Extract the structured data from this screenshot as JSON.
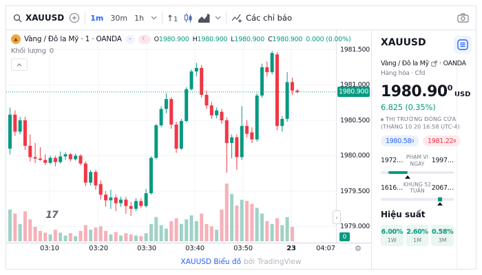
{
  "toolbar": {
    "search_symbol": "XAUUSD",
    "intervals": [
      "1m",
      "30m",
      "1h"
    ],
    "indicators_label": "Các chỉ báo",
    "compare_badge": "1"
  },
  "legend": {
    "title": "Vàng / Đô la Mỹ · 1 · OANDA",
    "pill_minus": "–",
    "pill_moon": "☾",
    "ohlc": [
      {
        "k": "O",
        "v": "1980.900"
      },
      {
        "k": "H",
        "v": "1980.900"
      },
      {
        "k": "L",
        "v": "1980.900"
      },
      {
        "k": "C",
        "v": "1980.900"
      }
    ],
    "change": "0.000 (0.00%)",
    "volume_label": "Khối lượng",
    "volume_value": "0",
    "watermark": "17"
  },
  "chart_data": {
    "type": "candlestick",
    "symbol": "XAUUSD",
    "interval": "1 minute",
    "title": "Vàng / Đô la Mỹ · 1 · OANDA",
    "ylim": [
      1978.8,
      1981.65
    ],
    "grid": true,
    "y_ticks": [
      {
        "t": "1981.500",
        "p": 1981.5
      },
      {
        "t": "1981.000",
        "p": 1981.0
      },
      {
        "t": "1980.500",
        "p": 1980.5
      },
      {
        "t": "1980.000",
        "p": 1980.0
      },
      {
        "t": "1979.500",
        "p": 1979.5
      },
      {
        "t": "1979.000",
        "p": 1979.0
      }
    ],
    "x_labels": [
      {
        "t": "03:10",
        "x": 63,
        "grid": true,
        "bold": false
      },
      {
        "t": "03:20",
        "x": 134,
        "grid": true,
        "bold": false
      },
      {
        "t": "03:30",
        "x": 204,
        "grid": true,
        "bold": false
      },
      {
        "t": "03:40",
        "x": 274,
        "grid": true,
        "bold": false
      },
      {
        "t": "03:50",
        "x": 344,
        "grid": true,
        "bold": false
      },
      {
        "t": "23",
        "x": 414,
        "grid": true,
        "bold": true
      },
      {
        "t": "04:07",
        "x": 464,
        "grid": false,
        "bold": false
      }
    ],
    "current_price": {
      "label": "1980.900",
      "p": 1980.9
    },
    "volume_zero_label": "0",
    "candles_format": [
      "open",
      "high",
      "low",
      "close",
      "volume_rel"
    ],
    "candles": [
      [
        1980.1,
        1980.68,
        1980.02,
        1980.58,
        55
      ],
      [
        1980.58,
        1980.64,
        1980.28,
        1980.34,
        48
      ],
      [
        1980.34,
        1980.55,
        1980.3,
        1980.5,
        30
      ],
      [
        1980.5,
        1980.55,
        1980.08,
        1980.14,
        52
      ],
      [
        1980.14,
        1980.3,
        1979.92,
        1979.98,
        38
      ],
      [
        1979.98,
        1980.18,
        1979.9,
        1979.96,
        25
      ],
      [
        1979.96,
        1980.12,
        1979.93,
        1979.94,
        18
      ],
      [
        1979.94,
        1980.02,
        1979.87,
        1979.9,
        15
      ],
      [
        1979.9,
        1980.0,
        1979.88,
        1979.97,
        12
      ],
      [
        1979.97,
        1980.0,
        1979.85,
        1979.91,
        20
      ],
      [
        1979.91,
        1980.06,
        1979.89,
        1979.99,
        15
      ],
      [
        1979.99,
        1980.05,
        1979.94,
        1980.02,
        10
      ],
      [
        1980.02,
        1980.04,
        1979.92,
        1979.95,
        14
      ],
      [
        1979.95,
        1980.03,
        1979.93,
        1980.0,
        9
      ],
      [
        1980.0,
        1980.02,
        1979.86,
        1979.89,
        18
      ],
      [
        1979.89,
        1979.92,
        1979.57,
        1979.62,
        28
      ],
      [
        1979.62,
        1979.8,
        1979.58,
        1979.77,
        20
      ],
      [
        1979.77,
        1979.8,
        1979.52,
        1979.58,
        24
      ],
      [
        1979.6,
        1979.65,
        1979.38,
        1979.45,
        26
      ],
      [
        1979.45,
        1979.5,
        1979.28,
        1979.37,
        18
      ],
      [
        1979.37,
        1979.52,
        1979.25,
        1979.41,
        12
      ],
      [
        1979.41,
        1979.45,
        1979.22,
        1979.33,
        16
      ],
      [
        1979.33,
        1979.42,
        1979.28,
        1979.38,
        10
      ],
      [
        1979.38,
        1979.42,
        1979.18,
        1979.29,
        14
      ],
      [
        1979.29,
        1979.35,
        1979.15,
        1979.25,
        12
      ],
      [
        1979.25,
        1979.4,
        1979.22,
        1979.36,
        10
      ],
      [
        1979.36,
        1979.4,
        1979.26,
        1979.29,
        9
      ],
      [
        1979.29,
        1979.53,
        1979.27,
        1979.47,
        14
      ],
      [
        1979.47,
        1979.99,
        1979.45,
        1979.97,
        30
      ],
      [
        1979.97,
        1980.45,
        1979.95,
        1980.43,
        42
      ],
      [
        1980.43,
        1980.7,
        1980.4,
        1980.66,
        28
      ],
      [
        1980.66,
        1980.88,
        1980.6,
        1980.8,
        22
      ],
      [
        1980.8,
        1980.83,
        1980.38,
        1980.44,
        35
      ],
      [
        1980.44,
        1980.48,
        1980.04,
        1980.1,
        40
      ],
      [
        1980.1,
        1980.52,
        1980.08,
        1980.49,
        30
      ],
      [
        1980.49,
        1980.97,
        1980.47,
        1980.94,
        38
      ],
      [
        1980.94,
        1981.22,
        1980.92,
        1981.19,
        45
      ],
      [
        1981.19,
        1981.31,
        1981.12,
        1981.24,
        35
      ],
      [
        1981.24,
        1981.28,
        1980.82,
        1980.86,
        48
      ],
      [
        1980.86,
        1980.92,
        1980.66,
        1980.71,
        30
      ],
      [
        1980.71,
        1980.76,
        1980.52,
        1980.57,
        26
      ],
      [
        1980.57,
        1980.68,
        1980.53,
        1980.64,
        20
      ],
      [
        1980.62,
        1980.66,
        1980.45,
        1980.5,
        55
      ],
      [
        1980.5,
        1980.54,
        1979.76,
        1980.18,
        100
      ],
      [
        1980.18,
        1980.3,
        1979.96,
        1980.26,
        82
      ],
      [
        1980.26,
        1980.3,
        1979.8,
        1979.98,
        62
      ],
      [
        1979.98,
        1980.7,
        1979.94,
        1980.42,
        72
      ],
      [
        1980.42,
        1980.5,
        1980.26,
        1980.31,
        70
      ],
      [
        1980.33,
        1980.4,
        1980.18,
        1980.23,
        65
      ],
      [
        1980.23,
        1980.88,
        1980.2,
        1980.85,
        58
      ],
      [
        1980.85,
        1981.3,
        1980.82,
        1981.25,
        48
      ],
      [
        1981.25,
        1981.33,
        1981.12,
        1981.18,
        35
      ],
      [
        1981.18,
        1981.48,
        1981.15,
        1981.45,
        30
      ],
      [
        1981.43,
        1981.46,
        1980.36,
        1980.42,
        40
      ],
      [
        1980.42,
        1980.56,
        1980.34,
        1980.52,
        28
      ],
      [
        1980.52,
        1981.18,
        1980.48,
        1981.04,
        42
      ],
      [
        1981.04,
        1981.1,
        1980.86,
        1980.92,
        25
      ],
      [
        1980.92,
        1980.94,
        1980.88,
        1980.9,
        0
      ]
    ],
    "colors": {
      "up": "#089981",
      "down": "#f23645",
      "vol_up": "#9fd2c6",
      "vol_down": "#f6b1b8",
      "grid": "#f0f3fa",
      "price_line": "#089981"
    }
  },
  "panel": {
    "symbol": "XAUUSD",
    "name": "Vàng / Đô la Mỹ",
    "sep": "·",
    "exchange": "OANDA",
    "type_line": "Hàng hóa · Cfd",
    "price_main": "1980.90",
    "price_sup": "0",
    "currency": "USD",
    "change": "6.825 (0.35%)",
    "status": "THỊ TRƯỜNG ĐÓNG CỬA",
    "status_detail": "(THÁNG 10 20 16:58 UTC-4)",
    "bid_main": "1980.58",
    "bid_sup": "0",
    "ask_main": "1981.22",
    "ask_sup": "8",
    "day_range": {
      "low": "1972…",
      "label_top": "PHẠM VI",
      "label_bottom": "NGÀY",
      "high": "1997…",
      "fill_start_pct": 10,
      "fill_end_pct": 37,
      "marker_pct": 37
    },
    "week52": {
      "low": "1616…",
      "label_top": "KHUNG 52",
      "label_bottom": "TUẦN",
      "high": "2067…",
      "marker_pct": 81
    },
    "perf": {
      "title": "Hiệu suất",
      "tiles": [
        {
          "value": "6.00%",
          "label": "1W"
        },
        {
          "value": "2.60%",
          "label": "1M"
        },
        {
          "value": "0.58%",
          "label": "3M"
        }
      ]
    }
  },
  "footer": {
    "link": "XAUUSD Biểu đồ",
    "by": "bởi",
    "brand": "TradingView"
  }
}
